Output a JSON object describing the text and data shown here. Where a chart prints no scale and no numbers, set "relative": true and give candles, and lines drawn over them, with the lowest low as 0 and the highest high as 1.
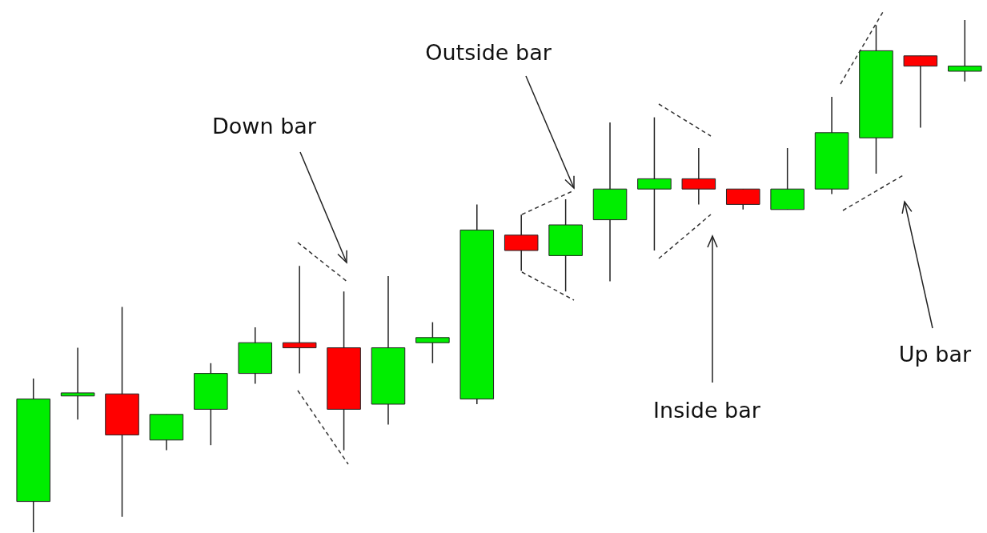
{
  "chart_data": {
    "type": "candlestick",
    "relative": true,
    "categories": [
      null,
      null,
      null,
      null,
      null,
      null,
      null,
      null,
      null,
      null,
      null,
      null,
      null,
      null,
      null,
      null,
      null,
      null,
      null,
      null,
      null,
      null
    ],
    "ohlc": [
      [
        0.06,
        0.3,
        0.0,
        0.26
      ],
      [
        0.266,
        0.36,
        0.22,
        0.272
      ],
      [
        0.27,
        0.44,
        0.03,
        0.19
      ],
      [
        0.18,
        0.23,
        0.16,
        0.23
      ],
      [
        0.24,
        0.33,
        0.17,
        0.31
      ],
      [
        0.31,
        0.4,
        0.29,
        0.37
      ],
      [
        0.37,
        0.52,
        0.31,
        0.36
      ],
      [
        0.36,
        0.47,
        0.16,
        0.24
      ],
      [
        0.25,
        0.5,
        0.21,
        0.36
      ],
      [
        0.37,
        0.41,
        0.33,
        0.38
      ],
      [
        0.26,
        0.64,
        0.25,
        0.59
      ],
      [
        0.58,
        0.62,
        0.51,
        0.55
      ],
      [
        0.54,
        0.65,
        0.47,
        0.6
      ],
      [
        0.61,
        0.8,
        0.49,
        0.67
      ],
      [
        0.67,
        0.81,
        0.55,
        0.69
      ],
      [
        0.69,
        0.75,
        0.64,
        0.67
      ],
      [
        0.67,
        0.67,
        0.63,
        0.64
      ],
      [
        0.63,
        0.75,
        0.63,
        0.67
      ],
      [
        0.67,
        0.85,
        0.66,
        0.78
      ],
      [
        0.77,
        0.99,
        0.7,
        0.94
      ],
      [
        0.93,
        0.93,
        0.79,
        0.91
      ],
      [
        0.9,
        1.0,
        0.88,
        0.91
      ]
    ],
    "colors": [
      "#00ee00",
      "#00ee00",
      "#ff0000",
      "#00ee00",
      "#00ee00",
      "#00ee00",
      "#ff0000",
      "#ff0000",
      "#00ee00",
      "#00ee00",
      "#00ee00",
      "#ff0000",
      "#00ee00",
      "#00ee00",
      "#00ee00",
      "#ff0000",
      "#ff0000",
      "#00ee00",
      "#00ee00",
      "#00ee00",
      "#ff0000",
      "#00ee00"
    ],
    "annotations": [
      "Down bar",
      "Outside bar",
      "Inside bar",
      "Up bar"
    ]
  }
}
